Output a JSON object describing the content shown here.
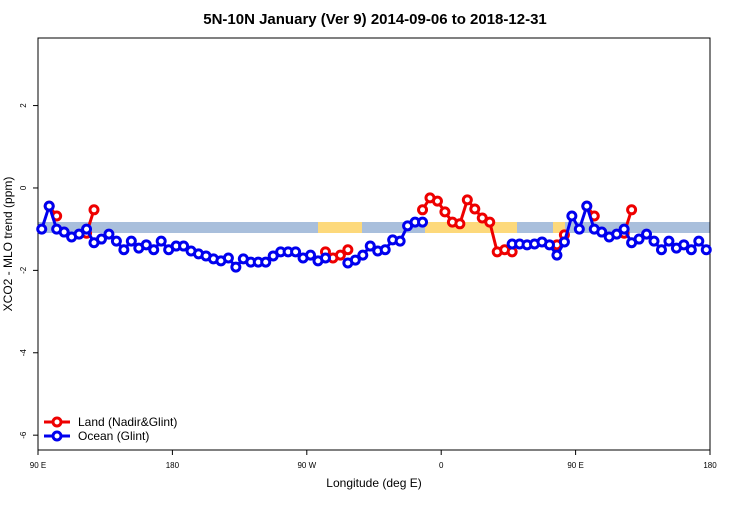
{
  "chart_data": {
    "type": "line",
    "title": "5N-10N January (Ver 9)   2014-09-06 to 2018-12-31",
    "x_label": "Longitude (deg E)",
    "y_label": "XCO2 - MLO trend (ppm)",
    "x": [
      92.5,
      97.5,
      102.5,
      107.5,
      112.5,
      117.5,
      122.5,
      127.5,
      132.5,
      137.5,
      142.5,
      147.5,
      152.5,
      157.5,
      162.5,
      167.5,
      172.5,
      177.5,
      182.5,
      187.5,
      192.5,
      197.5,
      202.5,
      207.5,
      212.5,
      217.5,
      222.5,
      227.5,
      232.5,
      237.5,
      242.5,
      247.5,
      252.5,
      257.5,
      262.5,
      267.5,
      272.5,
      277.5,
      282.5,
      287.5,
      292.5,
      297.5,
      302.5,
      307.5,
      312.5,
      317.5,
      322.5,
      327.5,
      332.5,
      337.5,
      342.5,
      347.5,
      352.5,
      357.5,
      362.5,
      367.5,
      372.5,
      377.5,
      382.5,
      387.5,
      392.5,
      397.5,
      402.5,
      407.5,
      412.5,
      417.5,
      422.5,
      427.5,
      432.5,
      437.5,
      442.5,
      447.5,
      452.5,
      457.5,
      462.5,
      467.5,
      472.5,
      477.5,
      482.5,
      487.5,
      492.5,
      497.5,
      502.5,
      507.5,
      512.5,
      517.5,
      522.5,
      527.5,
      532.5,
      537.5
    ],
    "series": [
      {
        "name": "Land (Nadir&Glint)",
        "color": "#ee0000",
        "values": [
          null,
          -0.44,
          -0.68,
          null,
          null,
          null,
          -1.1,
          -0.53,
          null,
          null,
          null,
          null,
          null,
          null,
          null,
          null,
          null,
          null,
          null,
          null,
          null,
          null,
          null,
          null,
          null,
          null,
          null,
          null,
          null,
          null,
          null,
          null,
          null,
          null,
          null,
          null,
          null,
          null,
          -1.55,
          -1.7,
          -1.63,
          -1.5,
          null,
          null,
          null,
          null,
          null,
          null,
          null,
          null,
          null,
          -0.53,
          -0.24,
          -0.32,
          -0.58,
          -0.83,
          -0.87,
          -0.29,
          -0.51,
          -0.73,
          -0.83,
          -1.55,
          -1.5,
          -1.55,
          null,
          null,
          null,
          null,
          null,
          -1.38,
          -1.14,
          null,
          null,
          -0.44,
          -0.68,
          null,
          null,
          null,
          -1.1,
          -0.53,
          null,
          null,
          null,
          null,
          null,
          null,
          null,
          null,
          null,
          null
        ]
      },
      {
        "name": "Ocean (Glint)",
        "color": "#0000ee",
        "values": [
          -1.0,
          -0.44,
          -1.0,
          -1.07,
          -1.19,
          -1.12,
          -1.0,
          -1.33,
          -1.24,
          -1.12,
          -1.29,
          -1.5,
          -1.29,
          -1.46,
          -1.38,
          -1.5,
          -1.29,
          -1.5,
          -1.41,
          -1.41,
          -1.53,
          -1.6,
          -1.65,
          -1.72,
          -1.77,
          -1.7,
          -1.92,
          -1.72,
          -1.8,
          -1.8,
          -1.8,
          -1.65,
          -1.55,
          -1.55,
          -1.55,
          -1.7,
          -1.63,
          -1.77,
          -1.7,
          null,
          null,
          -1.82,
          -1.75,
          -1.63,
          -1.41,
          -1.53,
          -1.5,
          -1.26,
          -1.29,
          -0.92,
          -0.83,
          -0.83,
          null,
          null,
          null,
          null,
          null,
          null,
          null,
          null,
          null,
          null,
          null,
          -1.36,
          -1.36,
          -1.38,
          -1.36,
          -1.31,
          -1.38,
          -1.63,
          -1.31,
          -0.68,
          -1.0,
          -0.44,
          -1.0,
          -1.07,
          -1.19,
          -1.12,
          -1.0,
          -1.33,
          -1.24,
          -1.12,
          -1.29,
          -1.5,
          -1.29,
          -1.46,
          -1.38,
          -1.5,
          -1.29,
          -1.5
        ]
      }
    ],
    "xlim": [
      90,
      540
    ],
    "xticks": [
      {
        "value": 90,
        "label": "90 E"
      },
      180,
      {
        "value": 270,
        "label": "90 W"
      },
      {
        "value": 360,
        "label": "0"
      },
      {
        "value": 450,
        "label": "90 E"
      },
      {
        "value": 540,
        "label": "180"
      }
    ],
    "ylim": [
      -6.36,
      3.64
    ],
    "yticks": [
      -6,
      -4,
      -2,
      0,
      2
    ],
    "legend": "bottom-left"
  }
}
